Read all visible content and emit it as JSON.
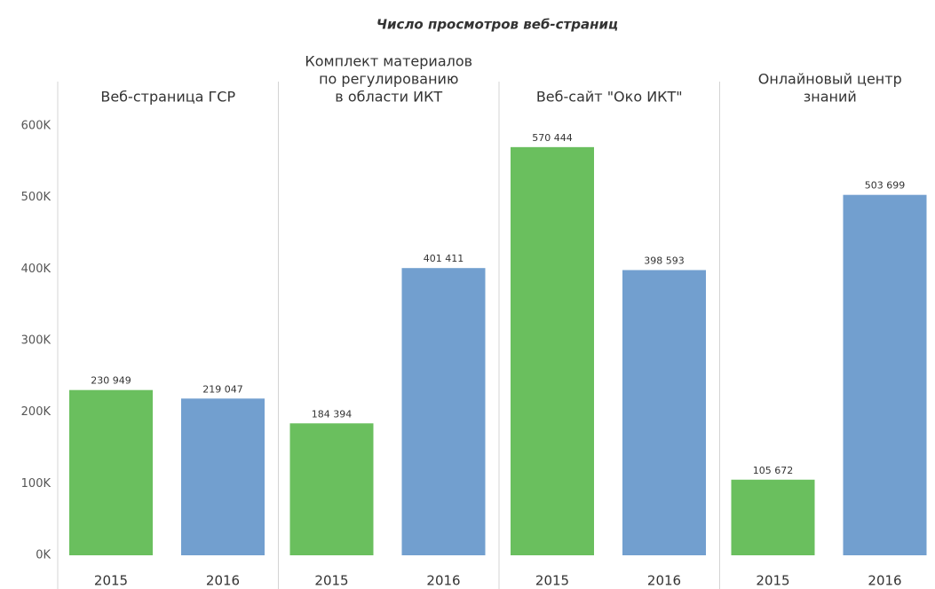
{
  "chart_data": {
    "type": "bar",
    "title": "Число просмотров веб-страниц",
    "groups": [
      [
        "Веб-страница ГСР"
      ],
      [
        "Комплект материалов",
        "по регулированию",
        "в области ИКТ"
      ],
      [
        "Веб-сайт \"Око ИКТ\""
      ],
      [
        "Онлайновый центр",
        "знаний"
      ]
    ],
    "series": [
      {
        "name": "2015",
        "color": "#6abf5e",
        "values": [
          230949,
          184394,
          570444,
          105672
        ],
        "value_labels": [
          "230 949",
          "184 394",
          "570 444",
          "105 672"
        ]
      },
      {
        "name": "2016",
        "color": "#729fcf",
        "values": [
          219047,
          401411,
          398593,
          503699
        ],
        "value_labels": [
          "219 047",
          "401 411",
          "398 593",
          "503 699"
        ]
      }
    ],
    "ylim": [
      0,
      600000
    ],
    "yticks": [
      {
        "value": 0,
        "label": "0K"
      },
      {
        "value": 100000,
        "label": "100K"
      },
      {
        "value": 200000,
        "label": "200K"
      },
      {
        "value": 300000,
        "label": "300K"
      },
      {
        "value": 400000,
        "label": "400K"
      },
      {
        "value": 500000,
        "label": "500K"
      },
      {
        "value": 600000,
        "label": "600K"
      }
    ],
    "grid": false
  }
}
